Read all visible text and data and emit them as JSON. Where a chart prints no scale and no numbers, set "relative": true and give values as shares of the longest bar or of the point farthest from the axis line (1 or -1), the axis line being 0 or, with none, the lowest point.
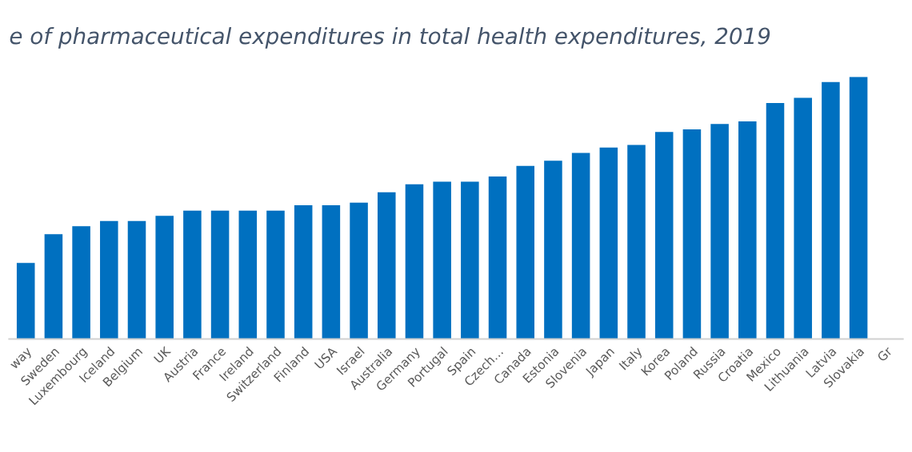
{
  "chart_data": {
    "type": "bar",
    "title": "e of pharmaceutical expenditures in total health expenditures, 2019",
    "categories": [
      "way",
      "Sweden",
      "Luxembourg",
      "Iceland",
      "Belgium",
      "UK",
      "Austria",
      "France",
      "Ireland",
      "Switzerland",
      "Finland",
      "USA",
      "Israel",
      "Australia",
      "Germany",
      "Portugal",
      "Spain",
      "Czech…",
      "Canada",
      "Estonia",
      "Slovenia",
      "Japan",
      "Italy",
      "Korea",
      "Poland",
      "Russia",
      "Croatia",
      "Mexico",
      "Lithuania",
      "Latvia",
      "Slovakia",
      "Gr"
    ],
    "values": [
      0.29,
      0.4,
      0.43,
      0.45,
      0.45,
      0.47,
      0.49,
      0.49,
      0.49,
      0.49,
      0.51,
      0.51,
      0.52,
      0.56,
      0.59,
      0.6,
      0.6,
      0.62,
      0.66,
      0.68,
      0.71,
      0.73,
      0.74,
      0.79,
      0.8,
      0.82,
      0.83,
      0.9,
      0.92,
      0.98,
      1,
      null
    ],
    "color": "#0070c0",
    "relative": true,
    "grid": false,
    "legend": false
  }
}
